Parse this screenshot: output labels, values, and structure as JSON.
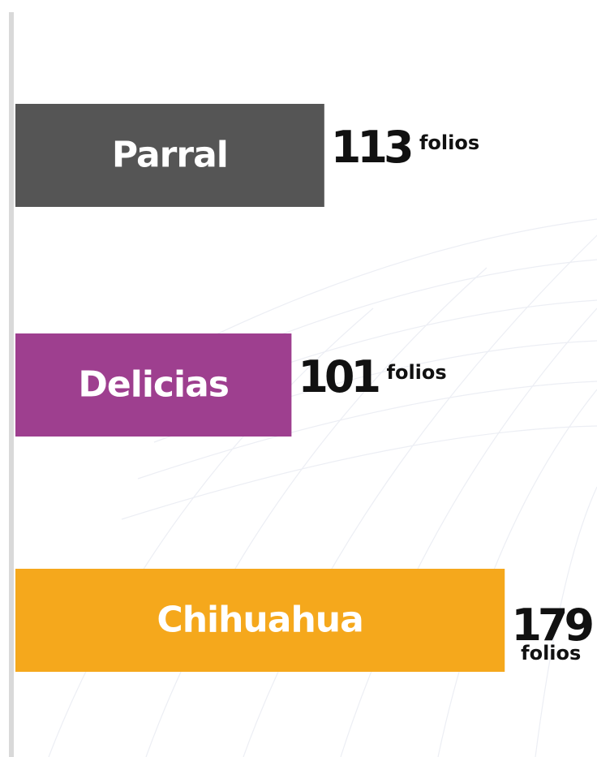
{
  "chart_data": {
    "type": "hbar",
    "categories": [
      "Parral",
      "Delicias",
      "Chihuahua"
    ],
    "values": [
      113,
      101,
      179
    ],
    "colors": [
      "#555555",
      "#9e3f8f",
      "#f5a81c"
    ],
    "unit_label": "folios"
  }
}
